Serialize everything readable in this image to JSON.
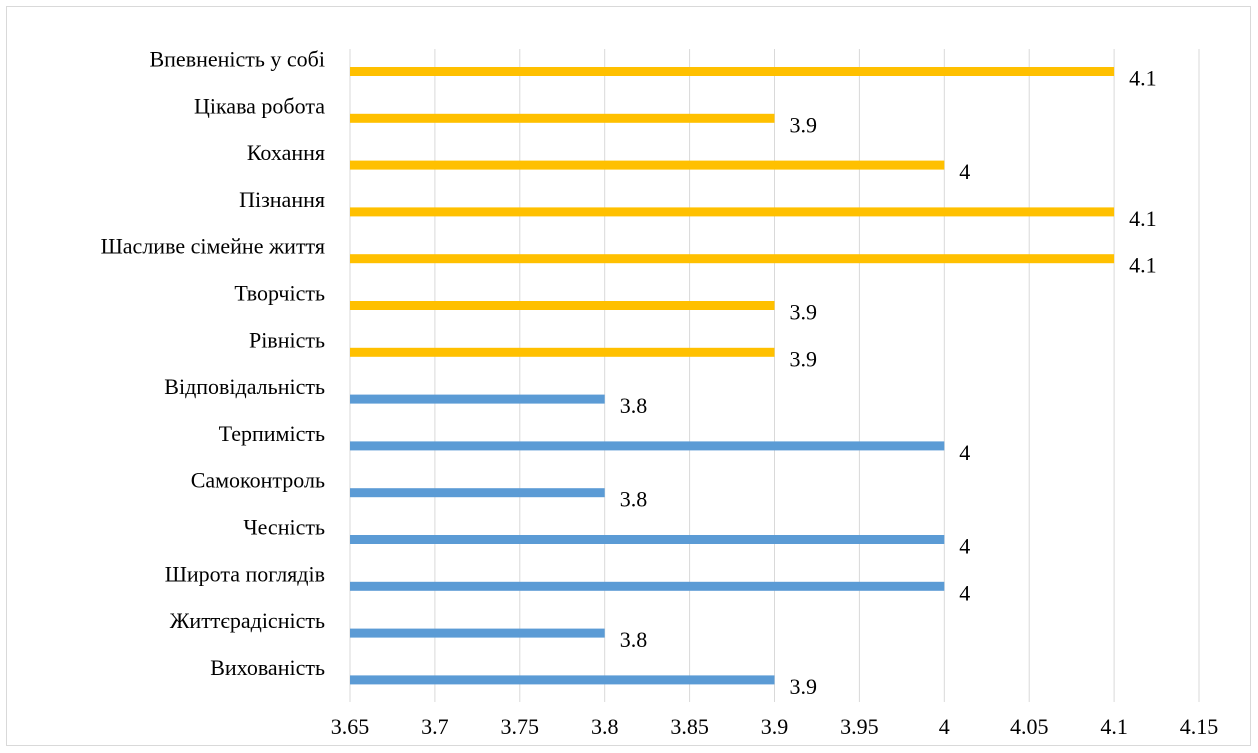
{
  "chart_data": {
    "type": "bar",
    "orientation": "horizontal",
    "categories": [
      "Впевненість у собі",
      "Цікава робота",
      "Кохання",
      "Пізнання",
      "Шасливе сімейне життя",
      "Творчість",
      "Рівність",
      "Відповідальність",
      "Терпимість",
      "Самоконтроль",
      "Чесність",
      "Широта поглядів",
      "Життєрадісність",
      "Вихованість"
    ],
    "values": [
      4.1,
      3.9,
      4,
      4.1,
      4.1,
      3.9,
      3.9,
      3.8,
      4,
      3.8,
      4,
      4,
      3.8,
      3.9
    ],
    "data_labels": [
      "4.1",
      "3.9",
      "4",
      "4.1",
      "4.1",
      "3.9",
      "3.9",
      "3.8",
      "4",
      "3.8",
      "4",
      "4",
      "3.8",
      "3.9"
    ],
    "bar_colors": [
      "#FFC000",
      "#FFC000",
      "#FFC000",
      "#FFC000",
      "#FFC000",
      "#FFC000",
      "#FFC000",
      "#5B9BD5",
      "#5B9BD5",
      "#5B9BD5",
      "#5B9BD5",
      "#5B9BD5",
      "#5B9BD5",
      "#5B9BD5"
    ],
    "xlim": [
      3.65,
      4.15
    ],
    "x_ticks": [
      3.65,
      3.7,
      3.75,
      3.8,
      3.85,
      3.9,
      3.95,
      4,
      4.05,
      4.1,
      4.15
    ],
    "x_tick_labels": [
      "3.65",
      "3.7",
      "3.75",
      "3.8",
      "3.85",
      "3.9",
      "3.95",
      "4",
      "4.05",
      "4.1",
      "4.15"
    ],
    "gridlines": "vertical",
    "grid_color": "#d9d9d9",
    "title": "",
    "xlabel": "",
    "ylabel": "",
    "legend": "none"
  }
}
